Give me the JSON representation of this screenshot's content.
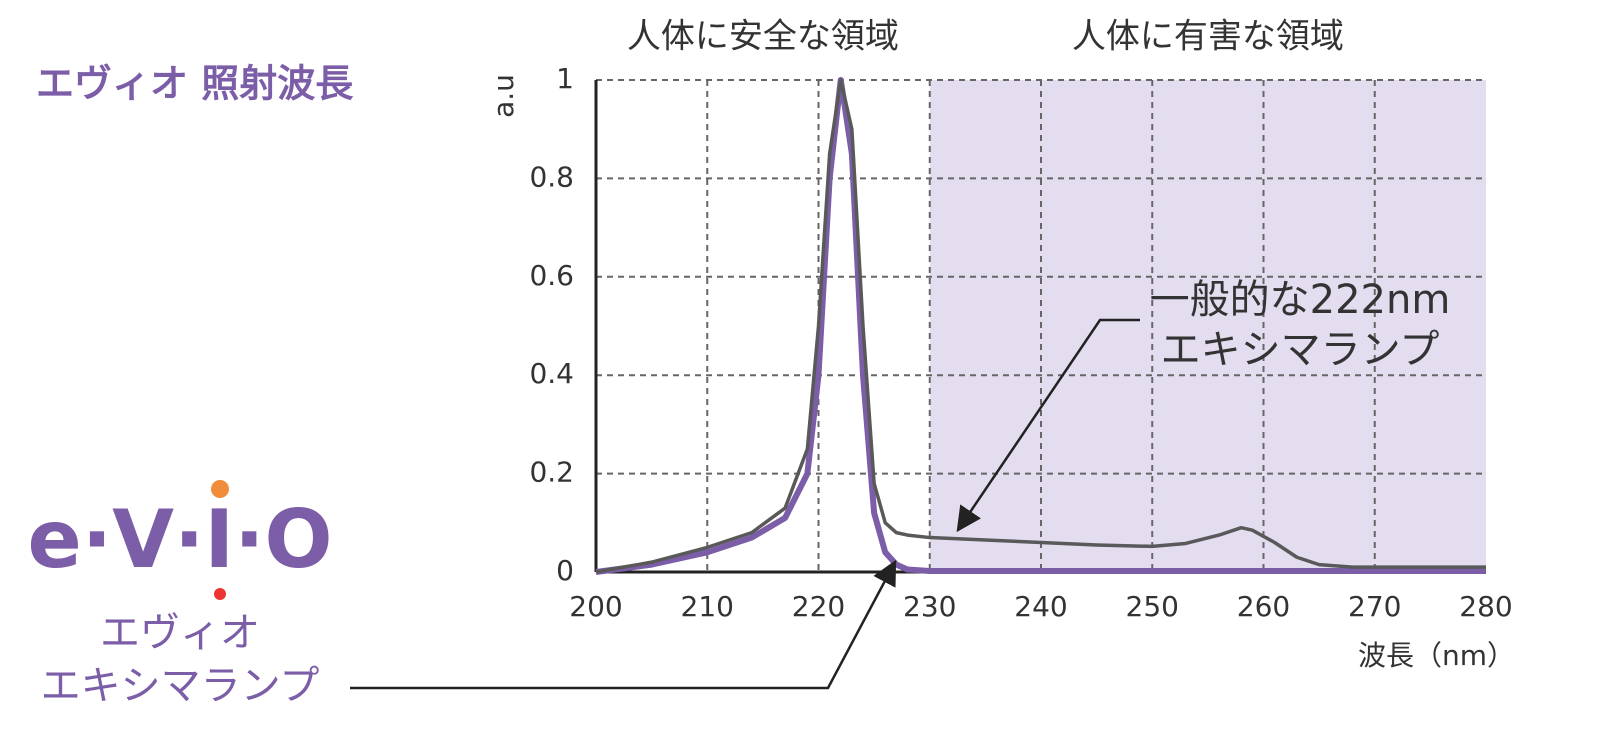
{
  "chart_data": {
    "type": "line",
    "title": "エヴィオ 照射波長",
    "ylabel": "a.u",
    "xlabel": "波長（nm）",
    "x": [
      200,
      205,
      210,
      214,
      217,
      219,
      220,
      221,
      222,
      223,
      224,
      225,
      226,
      227,
      228,
      230,
      235,
      240,
      245,
      250,
      253,
      256,
      258,
      259,
      261,
      263,
      265,
      268,
      270,
      280
    ],
    "series": [
      {
        "name": "一般的な222nm エキシマランプ",
        "color": "#595959",
        "values": [
          0,
          0.02,
          0.05,
          0.08,
          0.13,
          0.25,
          0.5,
          0.85,
          1,
          0.9,
          0.5,
          0.18,
          0.1,
          0.08,
          0.075,
          0.07,
          0.065,
          0.06,
          0.055,
          0.052,
          0.058,
          0.075,
          0.09,
          0.085,
          0.06,
          0.03,
          0.015,
          0.01,
          0.01,
          0.01
        ]
      },
      {
        "name": "エヴィオ エキシマランプ",
        "color": "#7b5ea7",
        "values": [
          0,
          0.015,
          0.04,
          0.07,
          0.11,
          0.2,
          0.4,
          0.8,
          1,
          0.85,
          0.4,
          0.12,
          0.04,
          0.015,
          0.005,
          0.002,
          0.002,
          0.002,
          0.002,
          0.002,
          0.002,
          0.002,
          0.002,
          0.002,
          0.002,
          0.002,
          0.002,
          0.002,
          0.002,
          0.002
        ]
      }
    ],
    "annotations": [
      [
        "一般的な222nm",
        "エキシマランプ"
      ],
      [
        "エヴィオ",
        "エキシマランプ"
      ]
    ],
    "logo": "e·V·I·O",
    "regions": [
      {
        "label": "人体に安全な領域",
        "x": [
          200,
          230
        ]
      },
      {
        "label": "人体に有害な領域",
        "x": [
          230,
          280
        ],
        "color": "#e3ddef"
      }
    ],
    "xlim": [
      200,
      280
    ],
    "ylim": [
      0,
      1
    ],
    "xticks": [
      200,
      210,
      220,
      230,
      240,
      250,
      260,
      270,
      280
    ],
    "yticks": [
      0,
      0.2,
      0.4,
      0.6,
      0.8,
      1
    ],
    "grid": true
  }
}
